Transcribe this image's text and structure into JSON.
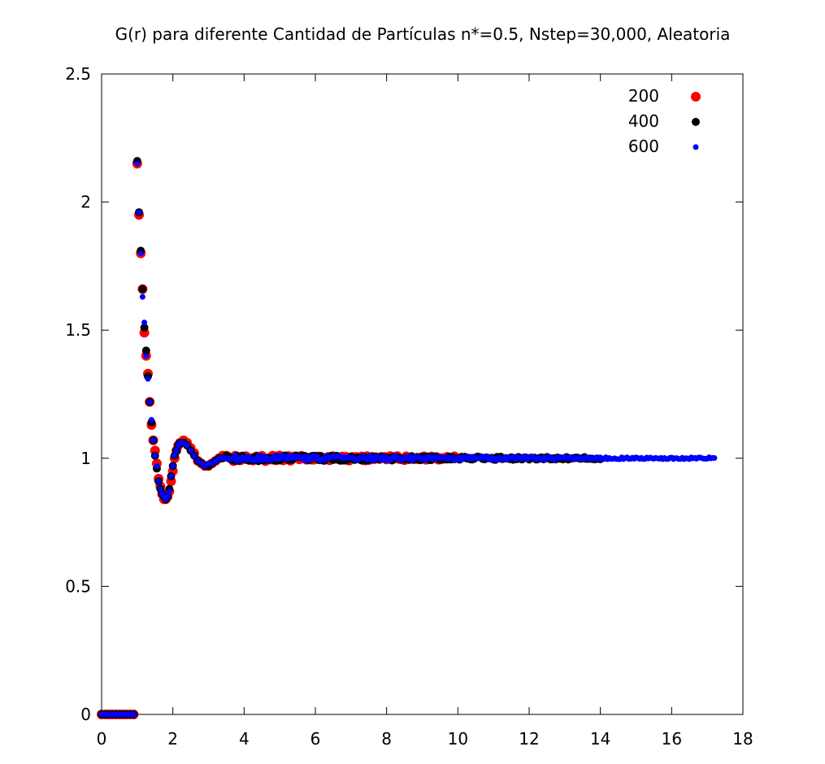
{
  "chart_data": {
    "type": "scatter",
    "title": "G(r) para diferente Cantidad de Partículas n*=0.5, Nstep=30,000, Aleatoria",
    "xlabel": "",
    "ylabel": "",
    "xlim": [
      0,
      18
    ],
    "ylim": [
      0,
      2.5
    ],
    "x_ticks": [
      "0",
      "2",
      "4",
      "6",
      "8",
      "10",
      "12",
      "14",
      "16",
      "18"
    ],
    "y_ticks": [
      "0",
      "0.5",
      "1",
      "1.5",
      "2",
      "2.5"
    ],
    "grid": false,
    "legend_position": "top-right",
    "series": [
      {
        "name": "200",
        "color": "#ff0000",
        "marker": "large-dot",
        "x_max": 9.9,
        "points": [
          [
            0,
            0
          ],
          [
            0.1,
            0
          ],
          [
            0.2,
            0
          ],
          [
            0.3,
            0
          ],
          [
            0.4,
            0
          ],
          [
            0.5,
            0
          ],
          [
            0.6,
            0
          ],
          [
            0.7,
            0
          ],
          [
            0.8,
            0
          ],
          [
            0.9,
            0
          ],
          [
            1.0,
            2.15
          ],
          [
            1.05,
            1.95
          ],
          [
            1.1,
            1.8
          ],
          [
            1.15,
            1.66
          ],
          [
            1.2,
            1.49
          ],
          [
            1.25,
            1.4
          ],
          [
            1.3,
            1.33
          ],
          [
            1.35,
            1.22
          ],
          [
            1.4,
            1.13
          ],
          [
            1.45,
            1.07
          ],
          [
            1.5,
            1.03
          ],
          [
            1.55,
            0.98
          ],
          [
            1.6,
            0.92
          ],
          [
            1.65,
            0.89
          ],
          [
            1.7,
            0.86
          ],
          [
            1.75,
            0.84
          ],
          [
            1.8,
            0.84
          ],
          [
            1.85,
            0.85
          ],
          [
            1.9,
            0.87
          ],
          [
            1.95,
            0.91
          ],
          [
            2.0,
            0.95
          ],
          [
            2.05,
            1.0
          ],
          [
            2.1,
            1.03
          ],
          [
            2.15,
            1.05
          ],
          [
            2.2,
            1.06
          ],
          [
            2.3,
            1.07
          ],
          [
            2.4,
            1.06
          ],
          [
            2.5,
            1.04
          ],
          [
            2.6,
            1.02
          ],
          [
            2.7,
            0.99
          ],
          [
            2.8,
            0.98
          ],
          [
            2.9,
            0.97
          ],
          [
            3.0,
            0.97
          ],
          [
            3.1,
            0.98
          ],
          [
            3.2,
            0.99
          ],
          [
            3.3,
            1.0
          ],
          [
            3.4,
            1.01
          ],
          [
            3.5,
            1.01
          ]
        ]
      },
      {
        "name": "400",
        "color": "#000000",
        "marker": "medium-dot",
        "x_max": 14.0,
        "points": [
          [
            0,
            0
          ],
          [
            0.1,
            0
          ],
          [
            0.2,
            0
          ],
          [
            0.3,
            0
          ],
          [
            0.4,
            0
          ],
          [
            0.5,
            0
          ],
          [
            0.6,
            0
          ],
          [
            0.7,
            0
          ],
          [
            0.8,
            0
          ],
          [
            0.9,
            0
          ],
          [
            1.0,
            2.16
          ],
          [
            1.05,
            1.96
          ],
          [
            1.1,
            1.81
          ],
          [
            1.15,
            1.66
          ],
          [
            1.2,
            1.51
          ],
          [
            1.25,
            1.42
          ],
          [
            1.3,
            1.32
          ],
          [
            1.35,
            1.22
          ],
          [
            1.4,
            1.14
          ],
          [
            1.45,
            1.07
          ],
          [
            1.5,
            1.01
          ],
          [
            1.55,
            0.96
          ],
          [
            1.6,
            0.91
          ],
          [
            1.65,
            0.88
          ],
          [
            1.7,
            0.86
          ],
          [
            1.75,
            0.85
          ],
          [
            1.8,
            0.84
          ],
          [
            1.85,
            0.85
          ],
          [
            1.9,
            0.88
          ],
          [
            1.95,
            0.93
          ],
          [
            2.0,
            0.97
          ],
          [
            2.05,
            1.01
          ],
          [
            2.1,
            1.03
          ],
          [
            2.15,
            1.05
          ],
          [
            2.2,
            1.06
          ],
          [
            2.3,
            1.06
          ],
          [
            2.4,
            1.05
          ],
          [
            2.5,
            1.03
          ],
          [
            2.6,
            1.01
          ],
          [
            2.7,
            0.99
          ],
          [
            2.8,
            0.98
          ],
          [
            2.9,
            0.97
          ],
          [
            3.0,
            0.97
          ],
          [
            3.1,
            0.98
          ],
          [
            3.2,
            0.99
          ],
          [
            3.3,
            1.0
          ],
          [
            3.4,
            1.0
          ],
          [
            3.5,
            1.01
          ]
        ]
      },
      {
        "name": "600",
        "color": "#0000ff",
        "marker": "small-dot",
        "x_max": 17.2,
        "points": [
          [
            0,
            0
          ],
          [
            0.1,
            0
          ],
          [
            0.2,
            0
          ],
          [
            0.3,
            0
          ],
          [
            0.4,
            0
          ],
          [
            0.5,
            0
          ],
          [
            0.6,
            0
          ],
          [
            0.7,
            0
          ],
          [
            0.8,
            0
          ],
          [
            0.9,
            0
          ],
          [
            1.0,
            2.15
          ],
          [
            1.05,
            1.96
          ],
          [
            1.1,
            1.8
          ],
          [
            1.15,
            1.63
          ],
          [
            1.2,
            1.53
          ],
          [
            1.25,
            1.4
          ],
          [
            1.3,
            1.31
          ],
          [
            1.35,
            1.22
          ],
          [
            1.4,
            1.15
          ],
          [
            1.45,
            1.07
          ],
          [
            1.5,
            1.01
          ],
          [
            1.55,
            0.97
          ],
          [
            1.6,
            0.91
          ],
          [
            1.65,
            0.88
          ],
          [
            1.7,
            0.86
          ],
          [
            1.75,
            0.85
          ],
          [
            1.8,
            0.84
          ],
          [
            1.85,
            0.85
          ],
          [
            1.9,
            0.87
          ],
          [
            1.95,
            0.93
          ],
          [
            2.0,
            0.97
          ],
          [
            2.05,
            1.01
          ],
          [
            2.1,
            1.03
          ],
          [
            2.15,
            1.05
          ],
          [
            2.2,
            1.06
          ],
          [
            2.3,
            1.06
          ],
          [
            2.4,
            1.05
          ],
          [
            2.5,
            1.03
          ],
          [
            2.6,
            1.01
          ],
          [
            2.7,
            0.99
          ],
          [
            2.8,
            0.98
          ],
          [
            2.9,
            0.97
          ],
          [
            3.0,
            0.98
          ],
          [
            3.1,
            0.98
          ],
          [
            3.2,
            0.99
          ],
          [
            3.3,
            1.0
          ],
          [
            3.4,
            1.0
          ],
          [
            3.5,
            1.0
          ]
        ]
      }
    ],
    "tail_value": 1.0
  }
}
